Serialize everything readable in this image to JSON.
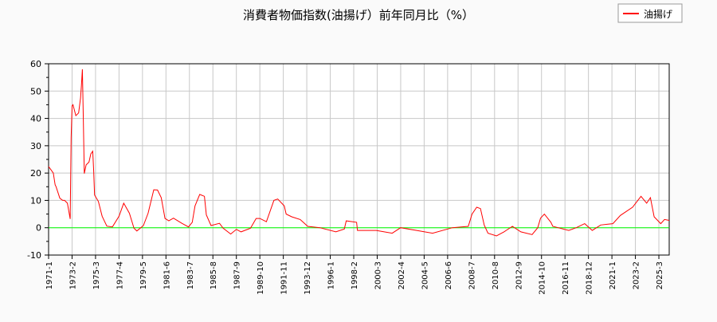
{
  "chart_data": {
    "type": "line",
    "title": "消費者物価指数(油揚げ）前年同月比（%）",
    "xlabel": "",
    "ylabel": "",
    "ylim": [
      -10,
      60
    ],
    "yticks": [
      -10,
      0,
      10,
      20,
      30,
      40,
      50,
      60
    ],
    "xlim": [
      "1971-01",
      "2026-02"
    ],
    "xtick_labels": [
      "1971-1",
      "1973-2",
      "1975-3",
      "1977-4",
      "1979-5",
      "1981-6",
      "1983-7",
      "1985-8",
      "1987-9",
      "1989-10",
      "1991-11",
      "1993-12",
      "1996-1",
      "1998-2",
      "2000-3",
      "2002-4",
      "2004-5",
      "2006-6",
      "2008-7",
      "2010-8",
      "2012-9",
      "2014-10",
      "2016-11",
      "2018-12",
      "2021-1",
      "2023-2",
      "2025-3"
    ],
    "grid": true,
    "legend_position": "top-right",
    "zero_line_color": "#00ff00",
    "series": [
      {
        "name": "油揚げ",
        "color": "#ff0000",
        "points": [
          [
            "1971-01",
            22.4
          ],
          [
            "1971-06",
            20
          ],
          [
            "1971-08",
            15.7
          ],
          [
            "1971-09",
            15
          ],
          [
            "1972-01",
            10.8
          ],
          [
            "1972-04",
            10
          ],
          [
            "1972-06",
            10
          ],
          [
            "1972-09",
            9
          ],
          [
            "1972-11",
            5.2
          ],
          [
            "1972-12",
            3.2
          ],
          [
            "1973-01",
            33
          ],
          [
            "1973-02",
            44.6
          ],
          [
            "1973-03",
            45
          ],
          [
            "1973-06",
            41
          ],
          [
            "1973-09",
            42
          ],
          [
            "1973-11",
            47.5
          ],
          [
            "1973-12",
            52
          ],
          [
            "1974-01",
            58
          ],
          [
            "1974-02",
            39.6
          ],
          [
            "1974-03",
            19.8
          ],
          [
            "1974-05",
            23
          ],
          [
            "1974-08",
            24
          ],
          [
            "1974-10",
            27
          ],
          [
            "1974-12",
            28
          ],
          [
            "1975-01",
            20.7
          ],
          [
            "1975-02",
            12
          ],
          [
            "1975-06",
            9.6
          ],
          [
            "1975-10",
            4.2
          ],
          [
            "1976-03",
            0.6
          ],
          [
            "1976-09",
            0.3
          ],
          [
            "1977-04",
            4.2
          ],
          [
            "1977-09",
            9
          ],
          [
            "1978-03",
            5.3
          ],
          [
            "1978-08",
            -0.2
          ],
          [
            "1978-11",
            -1.2
          ],
          [
            "1979-06",
            0.8
          ],
          [
            "1979-11",
            5.3
          ],
          [
            "1980-05",
            13.9
          ],
          [
            "1980-09",
            13.8
          ],
          [
            "1981-01",
            11
          ],
          [
            "1981-05",
            3.4
          ],
          [
            "1981-09",
            2.5
          ],
          [
            "1982-02",
            3.5
          ],
          [
            "1982-11",
            1.6
          ],
          [
            "1983-06",
            0.3
          ],
          [
            "1983-10",
            2
          ],
          [
            "1984-01",
            8
          ],
          [
            "1984-06",
            12.2
          ],
          [
            "1984-11",
            11.5
          ],
          [
            "1985-01",
            4.7
          ],
          [
            "1985-06",
            0.8
          ],
          [
            "1986-03",
            1.6
          ],
          [
            "1986-07",
            -0.2
          ],
          [
            "1987-03",
            -2.3
          ],
          [
            "1987-09",
            -0.6
          ],
          [
            "1988-02",
            -1.5
          ],
          [
            "1988-12",
            -0.2
          ],
          [
            "1989-06",
            3.4
          ],
          [
            "1989-10",
            3.4
          ],
          [
            "1990-05",
            2.2
          ],
          [
            "1991-01",
            10
          ],
          [
            "1991-05",
            10.5
          ],
          [
            "1991-12",
            8
          ],
          [
            "1992-02",
            5
          ],
          [
            "1992-08",
            4
          ],
          [
            "1993-05",
            3
          ],
          [
            "1994-01",
            0.5
          ],
          [
            "1995-02",
            0
          ],
          [
            "1996-07",
            -1.5
          ],
          [
            "1997-04",
            -0.5
          ],
          [
            "1997-06",
            2.5
          ],
          [
            "1998-05",
            2
          ],
          [
            "1998-06",
            -1
          ],
          [
            "2000-02",
            -1
          ],
          [
            "2001-07",
            -2
          ],
          [
            "2002-04",
            0
          ],
          [
            "2003-09",
            -1
          ],
          [
            "2005-02",
            -2
          ],
          [
            "2006-11",
            0
          ],
          [
            "2008-04",
            0.5
          ],
          [
            "2008-08",
            5
          ],
          [
            "2009-01",
            7.5
          ],
          [
            "2009-05",
            7
          ],
          [
            "2009-09",
            1
          ],
          [
            "2010-01",
            -2
          ],
          [
            "2010-10",
            -3
          ],
          [
            "2011-06",
            -1.5
          ],
          [
            "2012-03",
            0.5
          ],
          [
            "2012-12",
            -1.5
          ],
          [
            "2013-12",
            -2.5
          ],
          [
            "2014-06",
            0
          ],
          [
            "2014-09",
            3.5
          ],
          [
            "2015-01",
            5
          ],
          [
            "2015-08",
            2
          ],
          [
            "2015-10",
            0.5
          ],
          [
            "2017-03",
            -1
          ],
          [
            "2017-11",
            0
          ],
          [
            "2018-08",
            1.5
          ],
          [
            "2019-04",
            -1
          ],
          [
            "2020-01",
            1
          ],
          [
            "2021-02",
            1.5
          ],
          [
            "2021-10",
            4.5
          ],
          [
            "2022-11",
            7.5
          ],
          [
            "2023-08",
            11.5
          ],
          [
            "2024-02",
            9
          ],
          [
            "2024-06",
            11
          ],
          [
            "2024-10",
            4
          ],
          [
            "2025-05",
            1.5
          ],
          [
            "2025-09",
            3
          ],
          [
            "2026-02",
            2.7
          ]
        ]
      }
    ]
  }
}
